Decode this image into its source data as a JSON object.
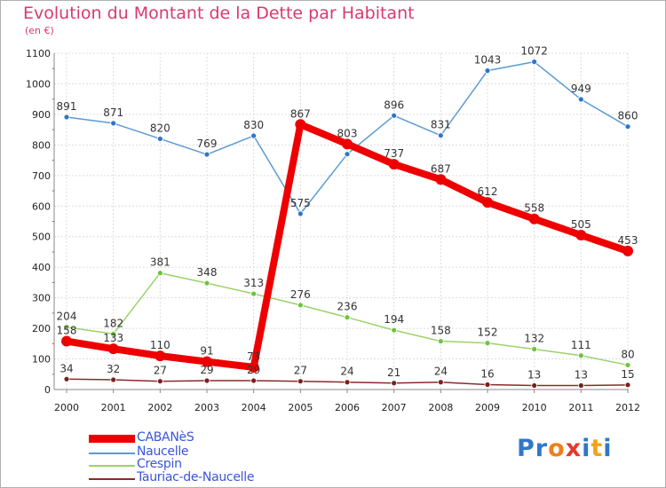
{
  "title": "Evolution du Montant de la Dette par Habitant",
  "unit": "(en €)",
  "logo": {
    "letters": [
      "P",
      "r",
      "o",
      "x",
      "i",
      "t",
      "i"
    ],
    "colors": [
      "#2f78c8",
      "#2f78c8",
      "#f07f1a",
      "#e23a2d",
      "#2f78c8",
      "#f0a41a",
      "#2f78c8"
    ]
  },
  "chart_data": {
    "type": "line",
    "title": "Evolution du Montant de la Dette par Habitant",
    "ylabel": "(en €)",
    "xlabel": "",
    "x": [
      "2000",
      "2001",
      "2002",
      "2003",
      "2004",
      "2005",
      "2006",
      "2007",
      "2008",
      "2009",
      "2010",
      "2011",
      "2012"
    ],
    "ylim": [
      0,
      1100
    ],
    "yticks": [
      "0",
      "100",
      "200",
      "300",
      "400",
      "500",
      "600",
      "700",
      "800",
      "900",
      "1000",
      "1100"
    ],
    "grid": true,
    "series": [
      {
        "name": "Naucelle",
        "color": "#5b9bd5",
        "dot": "#2e75c8",
        "values": [
          891,
          871,
          820,
          769,
          830,
          575,
          770,
          896,
          831,
          1043,
          1072,
          949,
          860
        ],
        "labels": [
          "891",
          "871",
          "820",
          "769",
          "830",
          "575",
          "",
          "896",
          "831",
          "1043",
          "1072",
          "949",
          "860"
        ]
      },
      {
        "name": "Crespin",
        "color": "#9bd26b",
        "dot": "#6cc43a",
        "values": [
          204,
          182,
          381,
          348,
          313,
          276,
          236,
          194,
          158,
          152,
          132,
          111,
          80
        ],
        "labels": [
          "204",
          "182",
          "381",
          "348",
          "313",
          "276",
          "236",
          "194",
          "158",
          "152",
          "132",
          "111",
          "80"
        ]
      },
      {
        "name": "Tauriac-de-Naucelle",
        "color": "#8b2a2a",
        "dot": "#7a1f1f",
        "values": [
          34,
          32,
          27,
          29,
          29,
          27,
          24,
          21,
          24,
          16,
          13,
          13,
          15
        ],
        "labels": [
          "34",
          "32",
          "27",
          "29",
          "29",
          "27",
          "24",
          "21",
          "24",
          "16",
          "13",
          "13",
          "15"
        ]
      },
      {
        "name": "CABANèS",
        "color": "#ee0000",
        "dot": "#ee0000",
        "values": [
          158,
          133,
          110,
          91,
          73,
          867,
          803,
          737,
          687,
          612,
          558,
          505,
          453
        ],
        "labels": [
          "158",
          "133",
          "110",
          "91",
          "73",
          "867",
          "803",
          "737",
          "687",
          "612",
          "558",
          "505",
          "453"
        ]
      }
    ],
    "legend": [
      {
        "name": "CABANèS",
        "color": "#ee0000"
      },
      {
        "name": "Naucelle",
        "color": "#5b9bd5"
      },
      {
        "name": "Crespin",
        "color": "#9bd26b"
      },
      {
        "name": "Tauriac-de-Naucelle",
        "color": "#8b2a2a"
      }
    ],
    "legend_position": "bottom-left"
  }
}
